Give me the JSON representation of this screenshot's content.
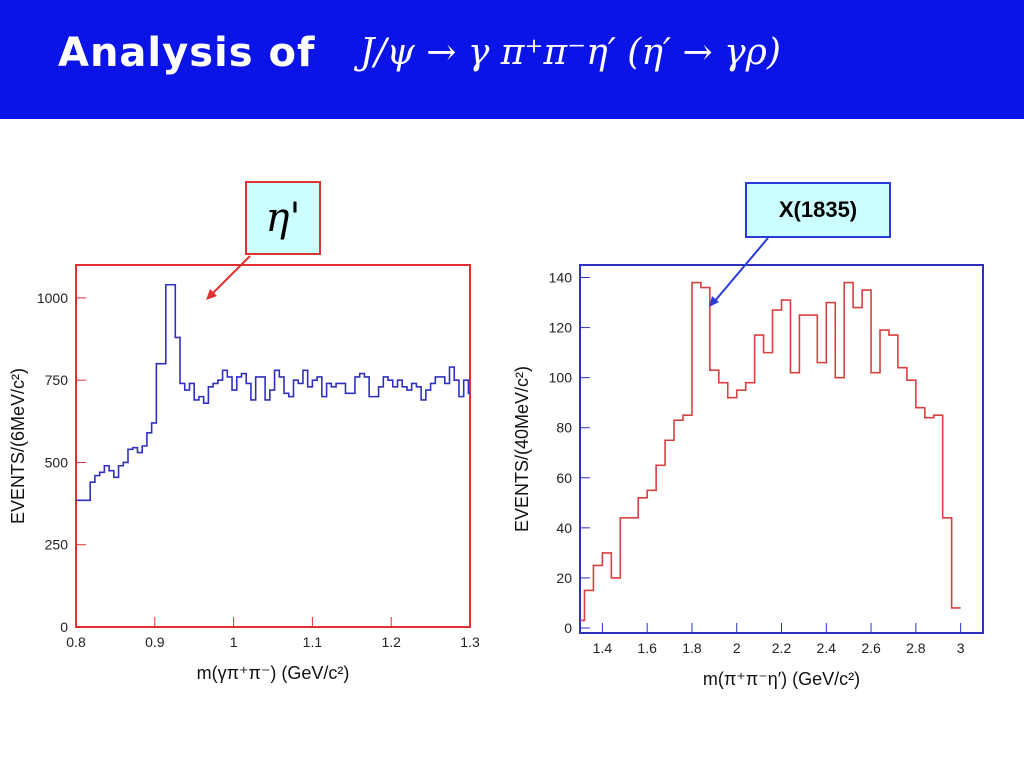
{
  "header": {
    "title": "Analysis of",
    "formula": "J/ψ → γ π⁺π⁻η′ (η′ → γρ)",
    "background_color": "#0a14e6"
  },
  "callouts": {
    "left": "η'",
    "right": "X(1835)"
  },
  "chart_data": [
    {
      "type": "line",
      "style": "step histogram",
      "frame_color": "#e03030",
      "line_color": "#3030c0",
      "xlabel": "m(γπ⁺π⁻)   (GeV/c²)",
      "ylabel": "EVENTS/(6MeV/c²)",
      "xlim": [
        0.8,
        1.3
      ],
      "ylim": [
        0,
        1100
      ],
      "xticks": [
        0.8,
        0.9,
        1,
        1.1,
        1.2,
        1.3
      ],
      "xtick_labels": [
        "0.8",
        "0.9",
        "1",
        "1.1",
        "1.2",
        "1.3"
      ],
      "yticks": [
        0,
        250,
        500,
        750,
        1000
      ],
      "ytick_labels": [
        "0",
        "250",
        "500",
        "750",
        "1000"
      ],
      "bin_width": 0.006,
      "x_start": 0.8,
      "values": [
        385,
        385,
        385,
        440,
        460,
        470,
        490,
        475,
        455,
        490,
        500,
        540,
        545,
        530,
        550,
        590,
        620,
        800,
        800,
        1040,
        1040,
        880,
        740,
        720,
        740,
        690,
        700,
        680,
        730,
        740,
        750,
        780,
        760,
        720,
        760,
        770,
        740,
        690,
        760,
        760,
        690,
        720,
        780,
        760,
        710,
        700,
        750,
        740,
        780,
        730,
        750,
        760,
        700,
        740,
        730,
        740,
        740,
        710,
        710,
        760,
        770,
        760,
        700,
        700,
        730,
        760,
        750,
        730,
        750,
        730,
        720,
        740,
        730,
        690,
        720,
        740,
        760,
        760,
        740,
        790,
        750,
        700,
        750,
        710
      ]
    },
    {
      "type": "line",
      "style": "step histogram",
      "frame_color": "#3030c0",
      "line_color": "#d84040",
      "xlabel": "m(π⁺π⁻η′)   (GeV/c²)",
      "ylabel": "EVENTS/(40MeV/c²)",
      "xlim": [
        1.3,
        3.1
      ],
      "ylim": [
        -2,
        145
      ],
      "xticks": [
        1.4,
        1.6,
        1.8,
        2,
        2.2,
        2.4,
        2.6,
        2.8,
        3
      ],
      "xtick_labels": [
        "1.4",
        "1.6",
        "1.8",
        "2",
        "2.2",
        "2.4",
        "2.6",
        "2.8",
        "3"
      ],
      "yticks": [
        0,
        20,
        40,
        60,
        80,
        100,
        120,
        140
      ],
      "ytick_labels": [
        "0",
        "20",
        "40",
        "60",
        "80",
        "100",
        "120",
        "140"
      ],
      "bin_width": 0.04,
      "x_start": 1.28,
      "values": [
        3,
        15,
        25,
        30,
        20,
        44,
        44,
        52,
        55,
        65,
        75,
        83,
        85,
        138,
        136,
        103,
        98,
        92,
        95,
        98,
        117,
        110,
        127,
        131,
        102,
        125,
        125,
        106,
        130,
        100,
        138,
        128,
        135,
        102,
        119,
        117,
        104,
        99,
        88,
        84,
        85,
        44,
        8
      ]
    }
  ]
}
